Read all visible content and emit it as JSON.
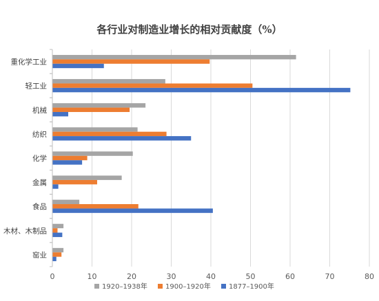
{
  "chart_data": {
    "type": "bar",
    "orientation": "horizontal",
    "title": "各行业对制造业增长的相对贡献度（%）",
    "xlabel": "",
    "ylabel": "",
    "xlim": [
      0,
      80
    ],
    "x_ticks": [
      "0",
      "10",
      "20",
      "30",
      "40",
      "50",
      "60",
      "70",
      "80"
    ],
    "grid": "vertical",
    "legend_position": "bottom",
    "categories": [
      "重化学工业",
      "轻工业",
      "机械",
      "纺织",
      "化学",
      "金属",
      "食品",
      "木材、木制品",
      "窑业"
    ],
    "series": [
      {
        "name": "1920–1938年",
        "color": "#a5a5a5",
        "values": [
          61.5,
          28.5,
          23.5,
          21.5,
          20.3,
          17.5,
          6.8,
          2.8,
          2.8
        ]
      },
      {
        "name": "1900–1920年",
        "color": "#ed7d31",
        "values": [
          39.7,
          50.5,
          19.5,
          28.8,
          8.8,
          11.3,
          21.7,
          1.3,
          2.3
        ]
      },
      {
        "name": "1877–1900年",
        "color": "#4472c4",
        "values": [
          13.0,
          75.2,
          4.0,
          35.0,
          7.5,
          1.5,
          40.5,
          2.5,
          1.0
        ]
      }
    ]
  }
}
